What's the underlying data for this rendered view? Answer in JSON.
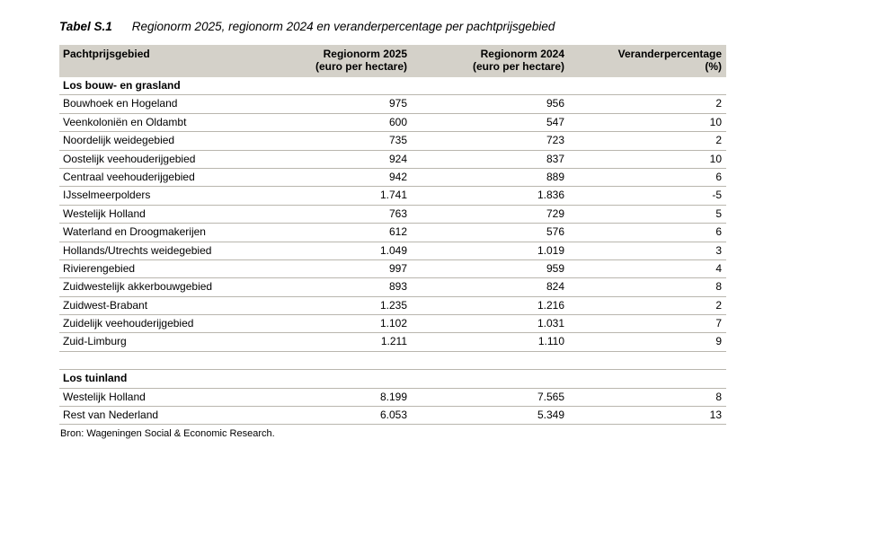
{
  "page": {
    "title_label": "Tabel S.1",
    "title_text": "Regionorm 2025, regionorm 2024 en veranderpercentage per pachtprijsgebied",
    "source": "Bron: Wageningen Social & Economic Research."
  },
  "colors": {
    "header_bg": "#d4d1c9",
    "row_border": "#b9b6ae",
    "text": "#000000",
    "page_bg": "#ffffff"
  },
  "table": {
    "header": [
      {
        "line1": "Pachtprijsgebied",
        "line2": ""
      },
      {
        "line1": "Regionorm 2025",
        "line2": "(euro per hectare)"
      },
      {
        "line1": "Regionorm 2024",
        "line2": "(euro per hectare)"
      },
      {
        "line1": "Veranderpercentage",
        "line2": "(%)"
      }
    ],
    "sections": [
      {
        "label": "Los bouw- en grasland",
        "rows": [
          [
            "Bouwhoek en Hogeland",
            "975",
            "956",
            "2"
          ],
          [
            "Veenkoloniën en Oldambt",
            "600",
            "547",
            "10"
          ],
          [
            "Noordelijk weidegebied",
            "735",
            "723",
            "2"
          ],
          [
            "Oostelijk veehouderijgebied",
            "924",
            "837",
            "10"
          ],
          [
            "Centraal veehouderijgebied",
            "942",
            "889",
            "6"
          ],
          [
            "IJsselmeerpolders",
            "1.741",
            "1.836",
            "-5"
          ],
          [
            "Westelijk Holland",
            "763",
            "729",
            "5"
          ],
          [
            "Waterland en Droogmakerijen",
            "612",
            "576",
            "6"
          ],
          [
            "Hollands/Utrechts weidegebied",
            "1.049",
            "1.019",
            "3"
          ],
          [
            "Rivierengebied",
            "997",
            "959",
            "4"
          ],
          [
            "Zuidwestelijk akkerbouwgebied",
            "893",
            "824",
            "8"
          ],
          [
            "Zuidwest-Brabant",
            "1.235",
            "1.216",
            "2"
          ],
          [
            "Zuidelijk veehouderijgebied",
            "1.102",
            "1.031",
            "7"
          ],
          [
            "Zuid-Limburg",
            "1.211",
            "1.110",
            "9"
          ]
        ]
      },
      {
        "label": "Los tuinland",
        "rows": [
          [
            "Westelijk Holland",
            "8.199",
            "7.565",
            "8"
          ],
          [
            "Rest van Nederland",
            "6.053",
            "5.349",
            "13"
          ]
        ]
      }
    ]
  }
}
